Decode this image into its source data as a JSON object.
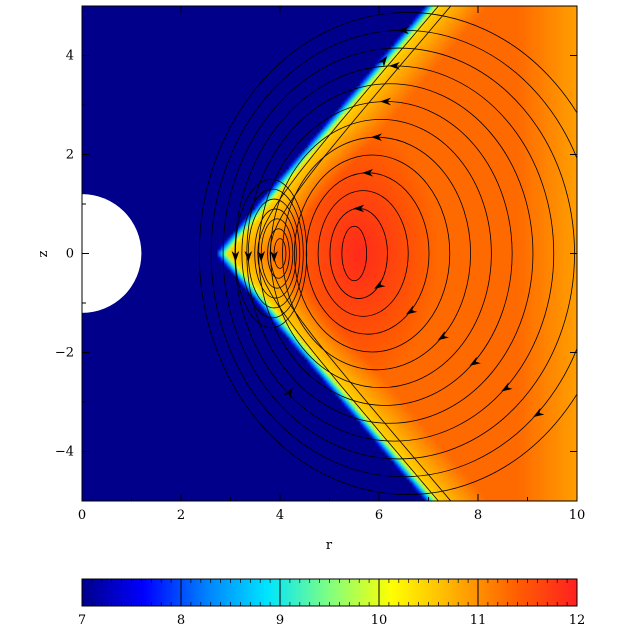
{
  "chart_data": {
    "type": "heatmap",
    "title": "",
    "xlabel": "r",
    "ylabel": "z",
    "xlim": [
      0,
      10
    ],
    "ylim": [
      -5,
      5
    ],
    "x_ticks": [
      0,
      2,
      4,
      6,
      8,
      10
    ],
    "y_ticks": [
      -4,
      -2,
      0,
      2,
      4
    ],
    "obstacle": {
      "shape": "circle",
      "center_r": 0,
      "center_z": 0,
      "radius": 1.2,
      "color": "#ffffff"
    },
    "field": {
      "background_value": 7,
      "shock_vertex_r": 2.7,
      "shock_slope": 0.85,
      "peak_value": 11.9,
      "peak_center": [
        5.6,
        0.0
      ]
    },
    "streamlines": "closed circulation loops centered near r≈4 and r≈5.6 at z≈0, plus open field lines along the shock",
    "colorbar": {
      "min": 7,
      "max": 12,
      "ticks": [
        7,
        8,
        9,
        10,
        11,
        12
      ],
      "colors": [
        "#00008b",
        "#0000ff",
        "#0080ff",
        "#00e5ff",
        "#80ff80",
        "#ffff00",
        "#ffb000",
        "#ff6000",
        "#ff2020"
      ]
    }
  },
  "colorbar_ticks_labels": [
    "7",
    "8",
    "9",
    "10",
    "11",
    "12"
  ],
  "x_tick_labels": [
    "0",
    "2",
    "4",
    "6",
    "8",
    "10"
  ],
  "y_tick_labels": [
    "−4",
    "−2",
    "0",
    "2",
    "4"
  ]
}
